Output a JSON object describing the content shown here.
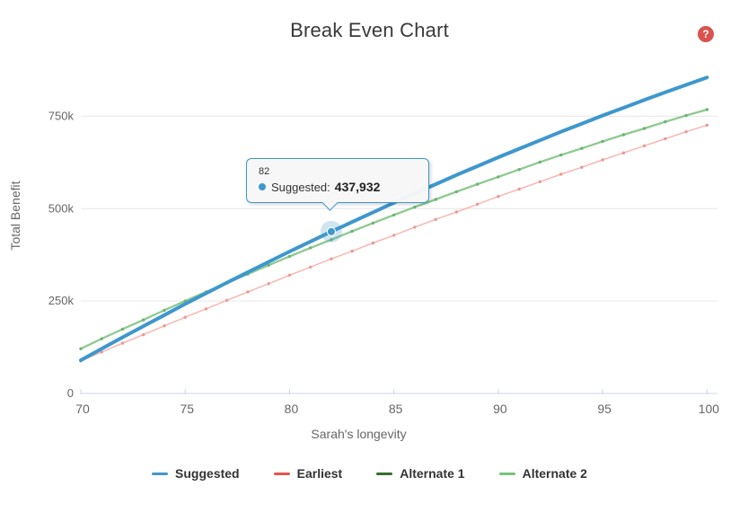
{
  "help": {
    "glyph": "?",
    "color": "#d9534f"
  },
  "chart_data": {
    "type": "line",
    "title": "Break Even Chart",
    "xlabel": "Sarah's longevity",
    "ylabel": "Total Benefit",
    "xlim": [
      70,
      100.5
    ],
    "ylim": [
      0,
      875000
    ],
    "grid": "horizontal",
    "legend_position": "bottom",
    "x_ticks": [
      70,
      75,
      80,
      85,
      90,
      95,
      100
    ],
    "y_ticks": [
      {
        "value": 0,
        "label": "0"
      },
      {
        "value": 250000,
        "label": "250k"
      },
      {
        "value": 500000,
        "label": "500k"
      },
      {
        "value": 750000,
        "label": "750k"
      }
    ],
    "x": [
      70,
      71,
      72,
      73,
      74,
      75,
      76,
      77,
      78,
      79,
      80,
      81,
      82,
      83,
      84,
      85,
      86,
      87,
      88,
      89,
      90,
      91,
      92,
      93,
      94,
      95,
      96,
      97,
      98,
      99,
      100
    ],
    "series": [
      {
        "name": "Alternate 1",
        "color": "#376e2e",
        "line_color": "#376e2e",
        "line_width": 2,
        "values": [
          121000,
          148000,
          174000,
          199000,
          225000,
          250000,
          275000,
          299000,
          323000,
          347000,
          371000,
          394000,
          416000,
          439000,
          461000,
          483000,
          504000,
          525000,
          546000,
          566000,
          586000,
          606000,
          626000,
          645000,
          663000,
          682000,
          700000,
          717000,
          735000,
          752000,
          768000
        ]
      },
      {
        "name": "Alternate 2",
        "color": "#77c379",
        "line_color": "#8fcd90",
        "marker_color": "#6db376",
        "line_width": 2,
        "values": [
          121000,
          148000,
          174000,
          199000,
          225000,
          250000,
          275000,
          299000,
          323000,
          347000,
          371000,
          394000,
          416000,
          439000,
          461000,
          483000,
          504000,
          525000,
          546000,
          566000,
          586000,
          606000,
          626000,
          645000,
          663000,
          682000,
          700000,
          717000,
          735000,
          752000,
          768000
        ]
      },
      {
        "name": "Earliest",
        "color": "#e2564a",
        "line_color": "#f5b8b3",
        "marker_color": "#eb9a94",
        "line_width": 1.5,
        "values": [
          88000,
          112000,
          136000,
          159000,
          183000,
          206000,
          229000,
          252000,
          275000,
          297000,
          320000,
          342000,
          364000,
          385000,
          407000,
          428000,
          450000,
          471000,
          491000,
          512000,
          533000,
          553000,
          573000,
          593000,
          612000,
          632000,
          651000,
          670000,
          689000,
          708000,
          726000
        ]
      },
      {
        "name": "Suggested",
        "color": "#3e97cd",
        "line_color": "#3e97cd",
        "line_width": 4,
        "values": [
          90000,
          121000,
          152000,
          182000,
          212000,
          242000,
          271000,
          300000,
          328000,
          356000,
          384000,
          411000,
          437932,
          464000,
          490000,
          516000,
          542000,
          566000,
          591000,
          615000,
          639000,
          662000,
          685000,
          708000,
          730000,
          752000,
          773000,
          794000,
          815000,
          835000,
          855000
        ]
      }
    ],
    "legend_order": [
      "Suggested",
      "Earliest",
      "Alternate 1",
      "Alternate 2"
    ],
    "tooltip": {
      "header": "82",
      "series": "Suggested",
      "series_label": "Suggested:",
      "value": "437,932",
      "x_value": 82,
      "y_value": 437932
    }
  }
}
